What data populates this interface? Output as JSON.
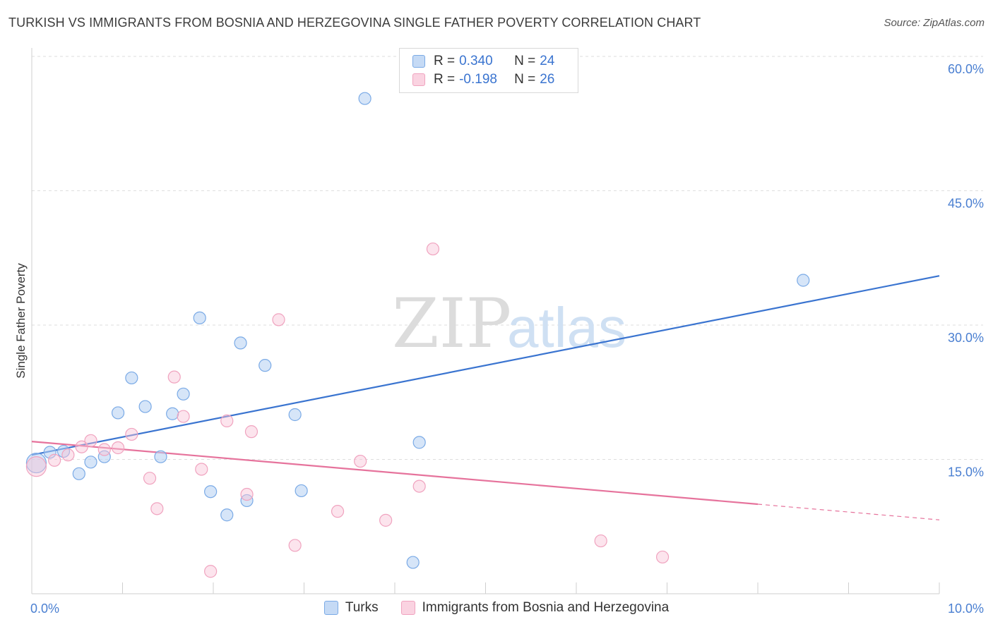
{
  "title": "TURKISH VS IMMIGRANTS FROM BOSNIA AND HERZEGOVINA SINGLE FATHER POVERTY CORRELATION CHART",
  "source": "Source: ZipAtlas.com",
  "watermark": {
    "zip": "ZIP",
    "atlas": "atlas"
  },
  "legend": {
    "rows": [
      {
        "r_label": "R =",
        "r_value": "0.340",
        "n_label": "N =",
        "n_value": "24"
      },
      {
        "r_label": "R =",
        "r_value": "-0.198",
        "n_label": "N =",
        "n_value": "26"
      }
    ]
  },
  "chart_data": {
    "type": "scatter",
    "ylabel": "Single Father Poverty",
    "xlim": [
      0,
      10
    ],
    "ylim": [
      0,
      60
    ],
    "x_tick_labels": [
      {
        "value": 0,
        "label": "0.0%"
      },
      {
        "value": 10,
        "label": "10.0%"
      }
    ],
    "y_tick_labels": [
      {
        "value": 15,
        "label": "15.0%"
      },
      {
        "value": 30,
        "label": "30.0%"
      },
      {
        "value": 45,
        "label": "45.0%"
      },
      {
        "value": 60,
        "label": "60.0%"
      }
    ],
    "grid": true,
    "colors": {
      "turks": "#7aaae6",
      "bosnia": "#f0a3bf",
      "turks_line": "#3a74d0",
      "bosnia_line": "#e6739c",
      "tick": "#4a7fd1"
    },
    "series": [
      {
        "name": "Turks",
        "points": [
          [
            0.05,
            14.6
          ],
          [
            0.2,
            15.8
          ],
          [
            0.35,
            15.9
          ],
          [
            0.52,
            13.4
          ],
          [
            0.65,
            14.7
          ],
          [
            0.8,
            15.3
          ],
          [
            0.95,
            20.2
          ],
          [
            1.1,
            24.1
          ],
          [
            1.25,
            20.9
          ],
          [
            1.42,
            15.3
          ],
          [
            1.55,
            20.1
          ],
          [
            1.67,
            22.3
          ],
          [
            1.85,
            30.8
          ],
          [
            1.97,
            11.4
          ],
          [
            2.15,
            8.8
          ],
          [
            2.3,
            28.0
          ],
          [
            2.37,
            10.4
          ],
          [
            2.57,
            25.5
          ],
          [
            2.9,
            20.0
          ],
          [
            2.97,
            11.5
          ],
          [
            3.67,
            55.3
          ],
          [
            4.2,
            3.5
          ],
          [
            4.27,
            16.9
          ],
          [
            8.5,
            35.0
          ]
        ],
        "trend": {
          "x": [
            0,
            10
          ],
          "y": [
            15.5,
            35.5
          ]
        }
      },
      {
        "name": "Immigrants from Bosnia and Herzegovina",
        "points": [
          [
            0.05,
            14.2
          ],
          [
            0.25,
            14.9
          ],
          [
            0.4,
            15.5
          ],
          [
            0.55,
            16.4
          ],
          [
            0.65,
            17.1
          ],
          [
            0.8,
            16.1
          ],
          [
            0.95,
            16.3
          ],
          [
            1.1,
            17.8
          ],
          [
            1.3,
            12.9
          ],
          [
            1.38,
            9.5
          ],
          [
            1.57,
            24.2
          ],
          [
            1.67,
            19.8
          ],
          [
            1.87,
            13.9
          ],
          [
            1.97,
            2.5
          ],
          [
            2.15,
            19.3
          ],
          [
            2.37,
            11.1
          ],
          [
            2.42,
            18.1
          ],
          [
            2.72,
            30.6
          ],
          [
            2.9,
            5.4
          ],
          [
            3.37,
            9.2
          ],
          [
            3.62,
            14.8
          ],
          [
            3.9,
            8.2
          ],
          [
            4.27,
            12.0
          ],
          [
            4.42,
            38.5
          ],
          [
            6.27,
            5.9
          ],
          [
            6.95,
            4.1
          ]
        ],
        "trend": {
          "x": [
            0,
            8
          ],
          "y": [
            17.0,
            10.0
          ]
        },
        "trend_dashed": {
          "x": [
            8,
            10
          ],
          "y": [
            10.0,
            8.25
          ]
        }
      }
    ]
  },
  "bottom_legend": [
    "Turks",
    "Immigrants from Bosnia and Herzegovina"
  ]
}
